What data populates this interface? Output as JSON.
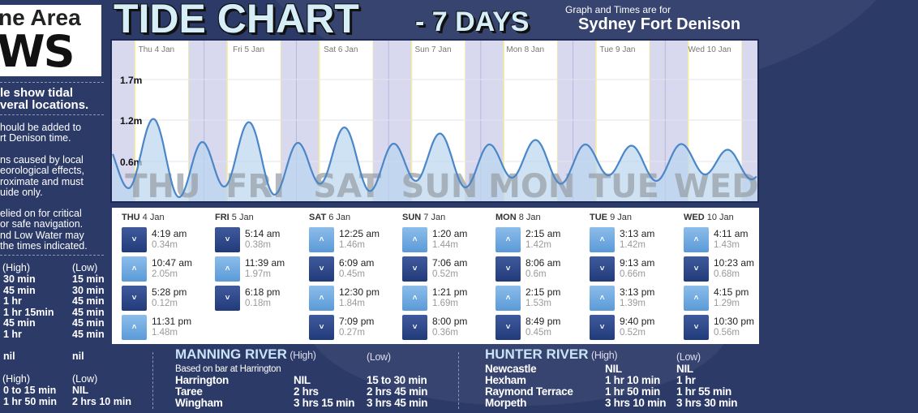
{
  "logo": {
    "line1": "ne Area",
    "line2": "WS"
  },
  "left_panel": {
    "heading": [
      "le show tidal",
      "veral locations."
    ],
    "para1": [
      "hould be added to",
      "rt Denison time."
    ],
    "para2": [
      "ns caused by local",
      "eorological effects,",
      "roximate and must",
      "uide only."
    ],
    "para3": [
      "elied on for critical",
      "or safe navigation.",
      "nd Low Water may",
      "the times indicated."
    ],
    "table1": {
      "high_label": "(High)",
      "low_label": "(Low)",
      "rows": [
        [
          "30 min",
          "15 min"
        ],
        [
          "45 min",
          "30 min"
        ],
        [
          "1 hr",
          "45 min"
        ],
        [
          "1 hr 15min",
          "45 min"
        ],
        [
          "45 min",
          "45 min"
        ],
        [
          "1 hr",
          "45 min"
        ]
      ]
    },
    "nil_row": [
      "nil",
      "nil"
    ],
    "table2": {
      "high_label": "(High)",
      "low_label": "(Low)",
      "rows": [
        [
          "0 to 15 min",
          "NIL"
        ],
        [
          "1 hr 50 min",
          "2 hrs 10 min"
        ]
      ]
    }
  },
  "header": {
    "title": "TIDE CHART",
    "title_suffix": "- 7 DAYS",
    "subtitle": "Graph and Times are for",
    "location": "Sydney Fort Denison"
  },
  "chart_data": {
    "type": "line",
    "title": "",
    "y_tick_labels": [
      "1.7m",
      "1.2m",
      "0.6m"
    ],
    "x_day_labels": [
      "Thu 4 Jan",
      "Fri 5 Jan",
      "Sat 6 Jan",
      "Sun 7 Jan",
      "Mon 8 Jan",
      "Tue 9 Jan",
      "Wed 10 Jan"
    ],
    "watermark_days": [
      "THU",
      "FRI",
      "SAT",
      "SUN",
      "MON",
      "TUE",
      "WED"
    ],
    "units": "m",
    "night_shading": true,
    "colors": {
      "line": "#4a86c8",
      "fill": "#b9d6f0",
      "night": "#d8d8ee",
      "watermark": "#9aa0a8"
    }
  },
  "days": [
    {
      "dow": "THU",
      "date": "4 Jan",
      "tides": [
        {
          "type": "low",
          "time": "4:19 am",
          "height": "0.34m"
        },
        {
          "type": "high",
          "time": "10:47 am",
          "height": "2.05m"
        },
        {
          "type": "low",
          "time": "5:28 pm",
          "height": "0.12m"
        },
        {
          "type": "high",
          "time": "11:31 pm",
          "height": "1.48m"
        }
      ]
    },
    {
      "dow": "FRI",
      "date": "5 Jan",
      "tides": [
        {
          "type": "low",
          "time": "5:14 am",
          "height": "0.38m"
        },
        {
          "type": "high",
          "time": "11:39 am",
          "height": "1.97m"
        },
        {
          "type": "low",
          "time": "6:18 pm",
          "height": "0.18m"
        }
      ]
    },
    {
      "dow": "SAT",
      "date": "6 Jan",
      "tides": [
        {
          "type": "high",
          "time": "12:25 am",
          "height": "1.46m"
        },
        {
          "type": "low",
          "time": "6:09 am",
          "height": "0.45m"
        },
        {
          "type": "high",
          "time": "12:30 pm",
          "height": "1.84m"
        },
        {
          "type": "low",
          "time": "7:09 pm",
          "height": "0.27m"
        }
      ]
    },
    {
      "dow": "SUN",
      "date": "7 Jan",
      "tides": [
        {
          "type": "high",
          "time": "1:20 am",
          "height": "1.44m"
        },
        {
          "type": "low",
          "time": "7:06 am",
          "height": "0.52m"
        },
        {
          "type": "high",
          "time": "1:21 pm",
          "height": "1.69m"
        },
        {
          "type": "low",
          "time": "8:00 pm",
          "height": "0.36m"
        }
      ]
    },
    {
      "dow": "MON",
      "date": "8 Jan",
      "tides": [
        {
          "type": "high",
          "time": "2:15 am",
          "height": "1.42m"
        },
        {
          "type": "low",
          "time": "8:06 am",
          "height": "0.6m"
        },
        {
          "type": "high",
          "time": "2:15 pm",
          "height": "1.53m"
        },
        {
          "type": "low",
          "time": "8:49 pm",
          "height": "0.45m"
        }
      ]
    },
    {
      "dow": "TUE",
      "date": "9 Jan",
      "tides": [
        {
          "type": "high",
          "time": "3:13 am",
          "height": "1.42m"
        },
        {
          "type": "low",
          "time": "9:13 am",
          "height": "0.66m"
        },
        {
          "type": "high",
          "time": "3:13 pm",
          "height": "1.39m"
        },
        {
          "type": "low",
          "time": "9:40 pm",
          "height": "0.52m"
        }
      ]
    },
    {
      "dow": "WED",
      "date": "10 Jan",
      "tides": [
        {
          "type": "high",
          "time": "4:11 am",
          "height": "1.43m"
        },
        {
          "type": "low",
          "time": "10:23 am",
          "height": "0.68m"
        },
        {
          "type": "high",
          "time": "4:15 pm",
          "height": "1.29m"
        },
        {
          "type": "low",
          "time": "10:30 pm",
          "height": "0.56m"
        }
      ]
    }
  ],
  "icons": {
    "high": "chevron-up-icon",
    "low": "chevron-down-icon"
  },
  "manning": {
    "name": "MANNING RIVER",
    "high": "(High)",
    "low": "(Low)",
    "note": "Based on bar at Harrington",
    "rows": [
      [
        "Harrington",
        "NIL",
        "15 to 30 min"
      ],
      [
        "Taree",
        "2 hrs",
        "2 hrs 45 min"
      ],
      [
        "Wingham",
        "3 hrs 15 min",
        "3 hrs 45 min"
      ]
    ]
  },
  "hunter": {
    "name": "HUNTER RIVER",
    "high": "(High)",
    "low": "(Low)",
    "rows": [
      [
        "Newcastle",
        "NIL",
        "NIL"
      ],
      [
        "Hexham",
        "1 hr 10 min",
        "1 hr"
      ],
      [
        "Raymond Terrace",
        "1 hr 50 min",
        "1 hr 55 min"
      ],
      [
        "Morpeth",
        "3 hrs 10 min",
        "3 hrs 30 min"
      ]
    ]
  }
}
